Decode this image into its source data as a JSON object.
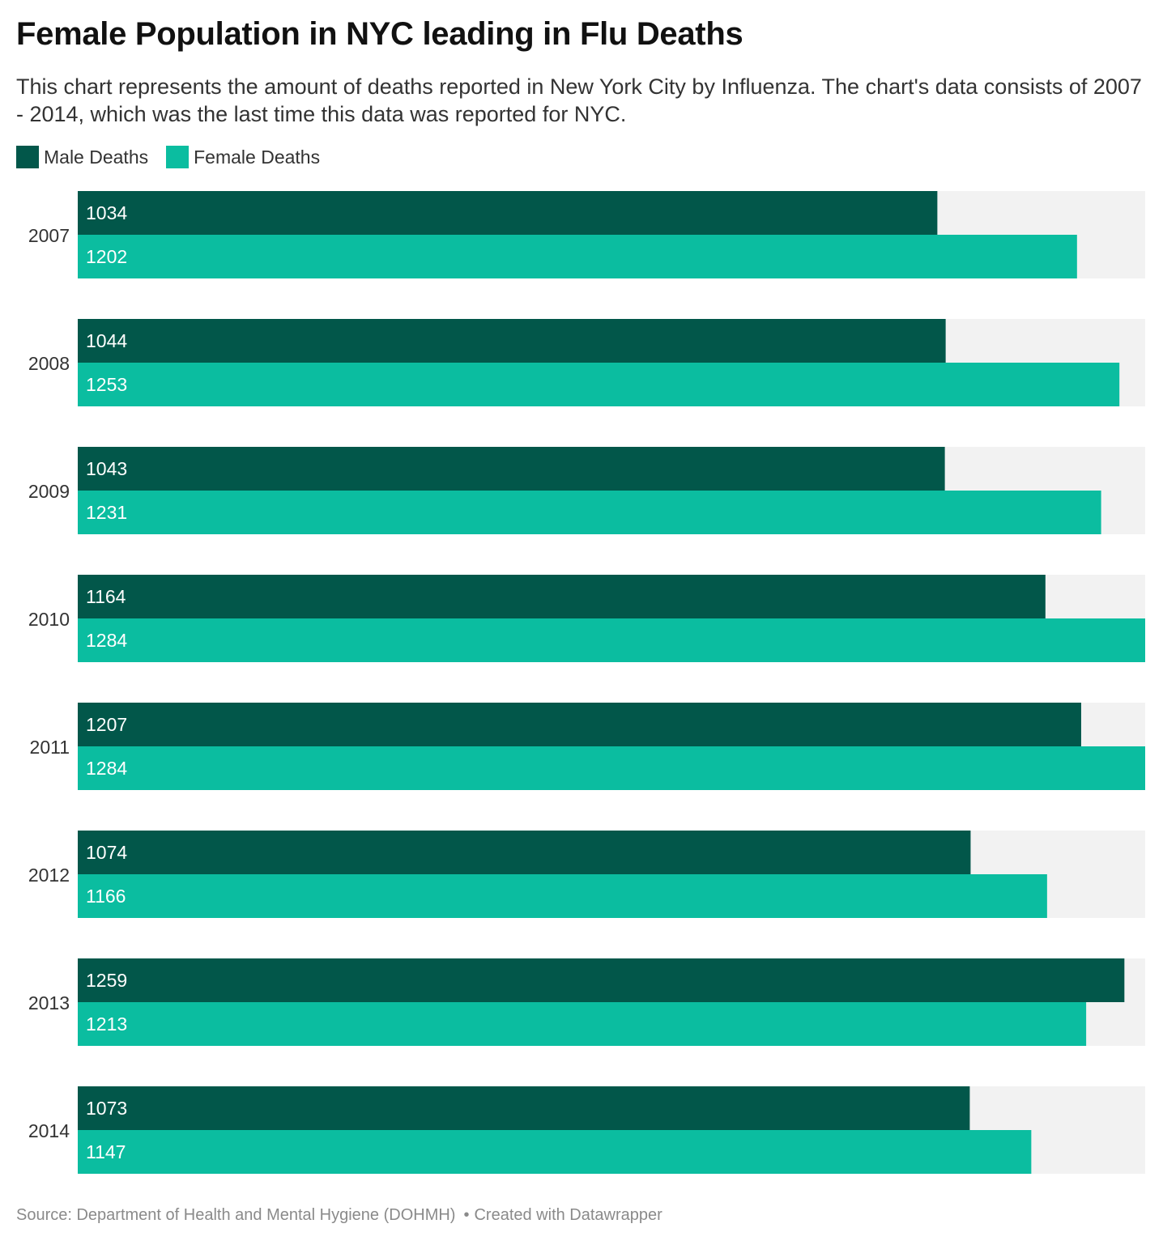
{
  "header": {
    "title": "Female Population in NYC leading in Flu Deaths",
    "subtitle": "This chart represents the amount of deaths reported in New York City by Influenza. The chart's data consists of 2007 - 2014, which was the last time this data was reported for NYC."
  },
  "footer": {
    "source": "Source: Department of Health and Mental Hygiene (DOHMH)",
    "separator": "•",
    "credit": "Created with Datawrapper"
  },
  "colors": {
    "male": "#02574a",
    "female": "#0bbda0",
    "track": "#f2f2f2"
  },
  "chart_data": {
    "type": "bar",
    "orientation": "horizontal",
    "categories": [
      "2007",
      "2008",
      "2009",
      "2010",
      "2011",
      "2012",
      "2013",
      "2014"
    ],
    "series": [
      {
        "name": "Male Deaths",
        "values": [
          1034,
          1044,
          1043,
          1164,
          1207,
          1074,
          1259,
          1073
        ]
      },
      {
        "name": "Female Deaths",
        "values": [
          1202,
          1253,
          1231,
          1284,
          1284,
          1166,
          1213,
          1147
        ]
      }
    ],
    "xlim": [
      0,
      1284
    ],
    "grid": false,
    "legend_position": "top-left",
    "data_labels": true
  }
}
